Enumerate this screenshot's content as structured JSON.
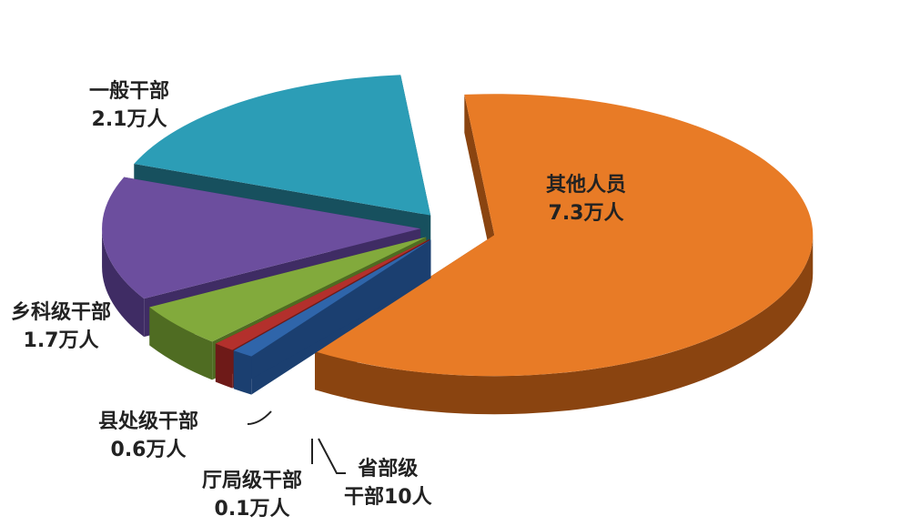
{
  "chart_data": {
    "type": "pie",
    "style": "3d-exploded",
    "unit_note": "",
    "slices": [
      {
        "name": "其他人员",
        "value_label": "7.3万人",
        "value": 73000,
        "color": "#E87B26",
        "side": "#8A4410"
      },
      {
        "name": "省部级干部",
        "value_label": "干部10人",
        "name_label": "省部级",
        "value": 10,
        "color": "#2F65AA",
        "side": "#1B3F70"
      },
      {
        "name": "厅局级干部",
        "value_label": "0.1万人",
        "value": 1000,
        "color": "#B3302C",
        "side": "#6E1A18"
      },
      {
        "name": "县处级干部",
        "value_label": "0.6万人",
        "value": 6000,
        "color": "#82AA3C",
        "side": "#4F6C22"
      },
      {
        "name": "乡科级干部",
        "value_label": "1.7万人",
        "value": 17000,
        "color": "#6C4E9E",
        "side": "#3F2C64"
      },
      {
        "name": "一般干部",
        "value_label": "2.1万人",
        "value": 21000,
        "color": "#2C9DB6",
        "side": "#17505E"
      }
    ],
    "legend": "none (direct labels)"
  }
}
